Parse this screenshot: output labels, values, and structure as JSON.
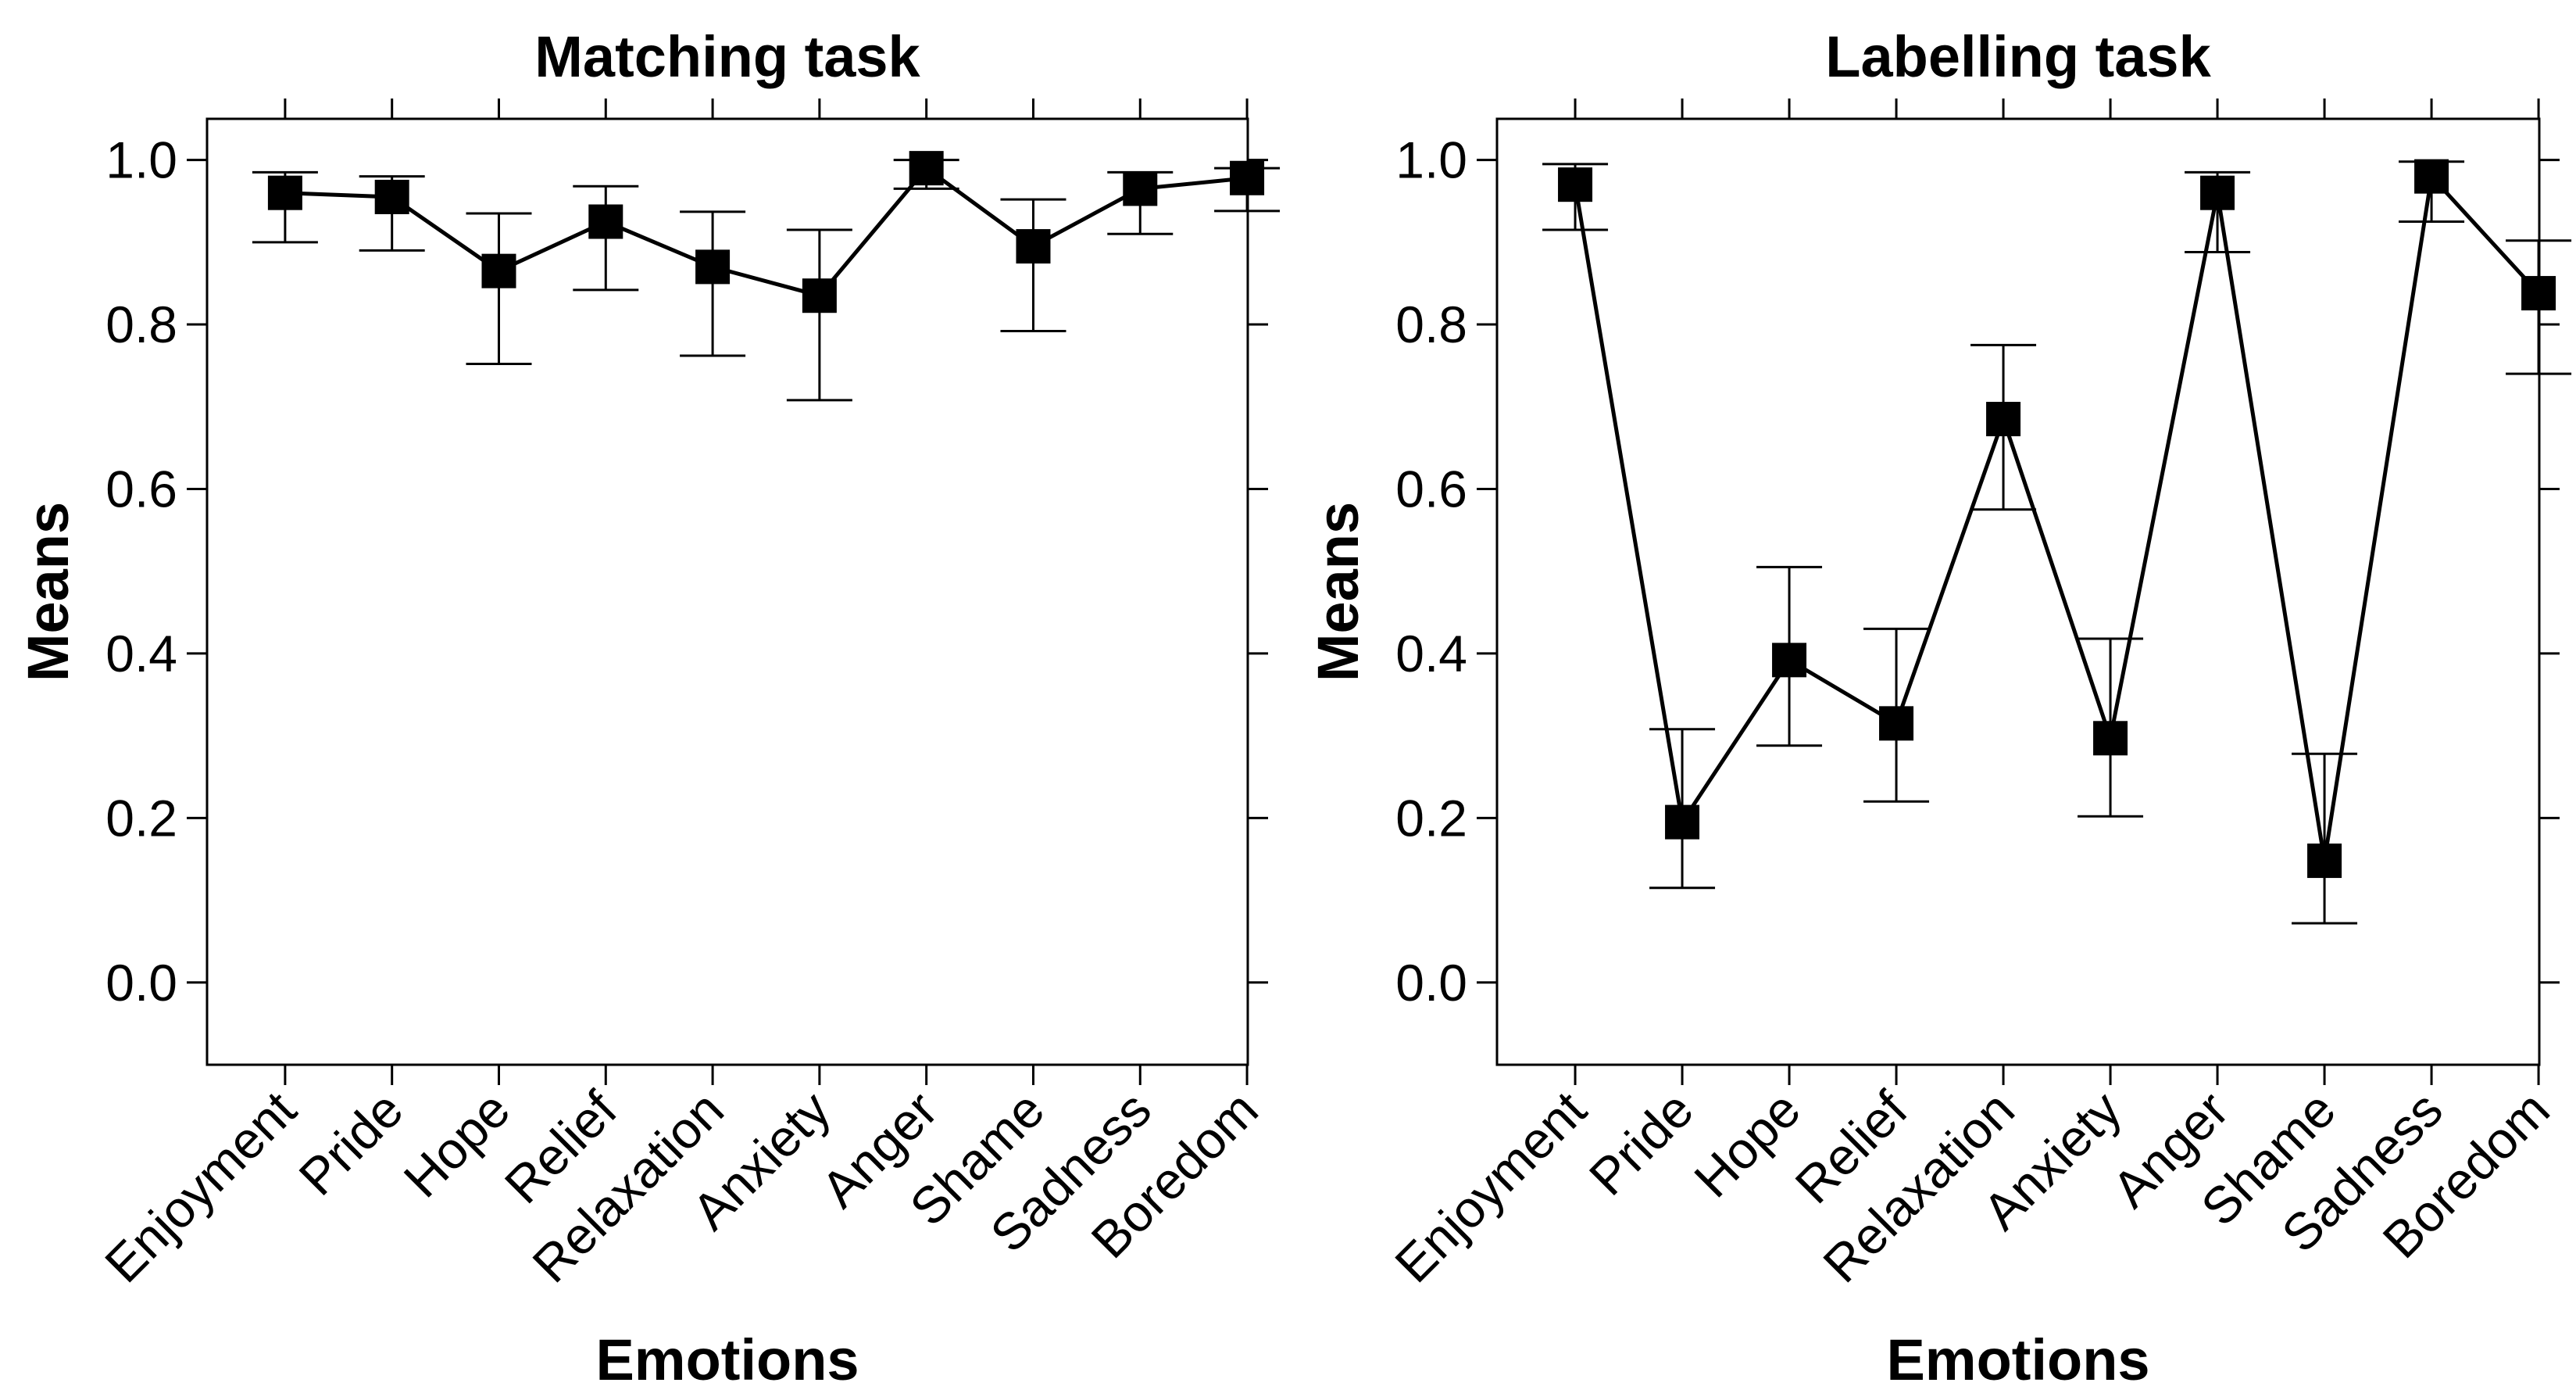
{
  "chart_data": [
    {
      "type": "line",
      "title": "Matching task",
      "xlabel": "Emotions",
      "ylabel": "Means",
      "ylim": [
        -0.1,
        1.05
      ],
      "yticks": [
        "0.0",
        "0.2",
        "0.4",
        "0.6",
        "0.8",
        "1.0"
      ],
      "categories": [
        "Enjoyment",
        "Pride",
        "Hope",
        "Relief",
        "Relaxation",
        "Anxiety",
        "Anger",
        "Shame",
        "Sadness",
        "Boredom"
      ],
      "series": [
        {
          "name": "Means",
          "values": [
            0.96,
            0.955,
            0.865,
            0.925,
            0.87,
            0.835,
            0.99,
            0.895,
            0.965,
            0.978
          ],
          "lower": [
            0.9,
            0.89,
            0.752,
            0.842,
            0.762,
            0.708,
            0.965,
            0.792,
            0.91,
            0.938
          ],
          "upper": [
            0.985,
            0.98,
            0.935,
            0.968,
            0.937,
            0.915,
            1.0,
            0.952,
            0.985,
            0.99
          ]
        }
      ]
    },
    {
      "type": "line",
      "title": "Labelling task",
      "xlabel": "Emotions",
      "ylabel": "Means",
      "ylim": [
        -0.1,
        1.05
      ],
      "yticks": [
        "0.0",
        "0.2",
        "0.4",
        "0.6",
        "0.8",
        "1.0"
      ],
      "categories": [
        "Enjoyment",
        "Pride",
        "Hope",
        "Relief",
        "Relaxation",
        "Anxiety",
        "Anger",
        "Shame",
        "Sadness",
        "Boredom"
      ],
      "series": [
        {
          "name": "Means",
          "values": [
            0.97,
            0.195,
            0.392,
            0.315,
            0.685,
            0.297,
            0.96,
            0.148,
            0.98,
            0.838
          ],
          "lower": [
            0.915,
            0.115,
            0.288,
            0.22,
            0.575,
            0.202,
            0.888,
            0.072,
            0.925,
            0.74
          ],
          "upper": [
            0.995,
            0.308,
            0.505,
            0.43,
            0.775,
            0.418,
            0.985,
            0.278,
            0.998,
            0.902
          ]
        }
      ]
    }
  ]
}
